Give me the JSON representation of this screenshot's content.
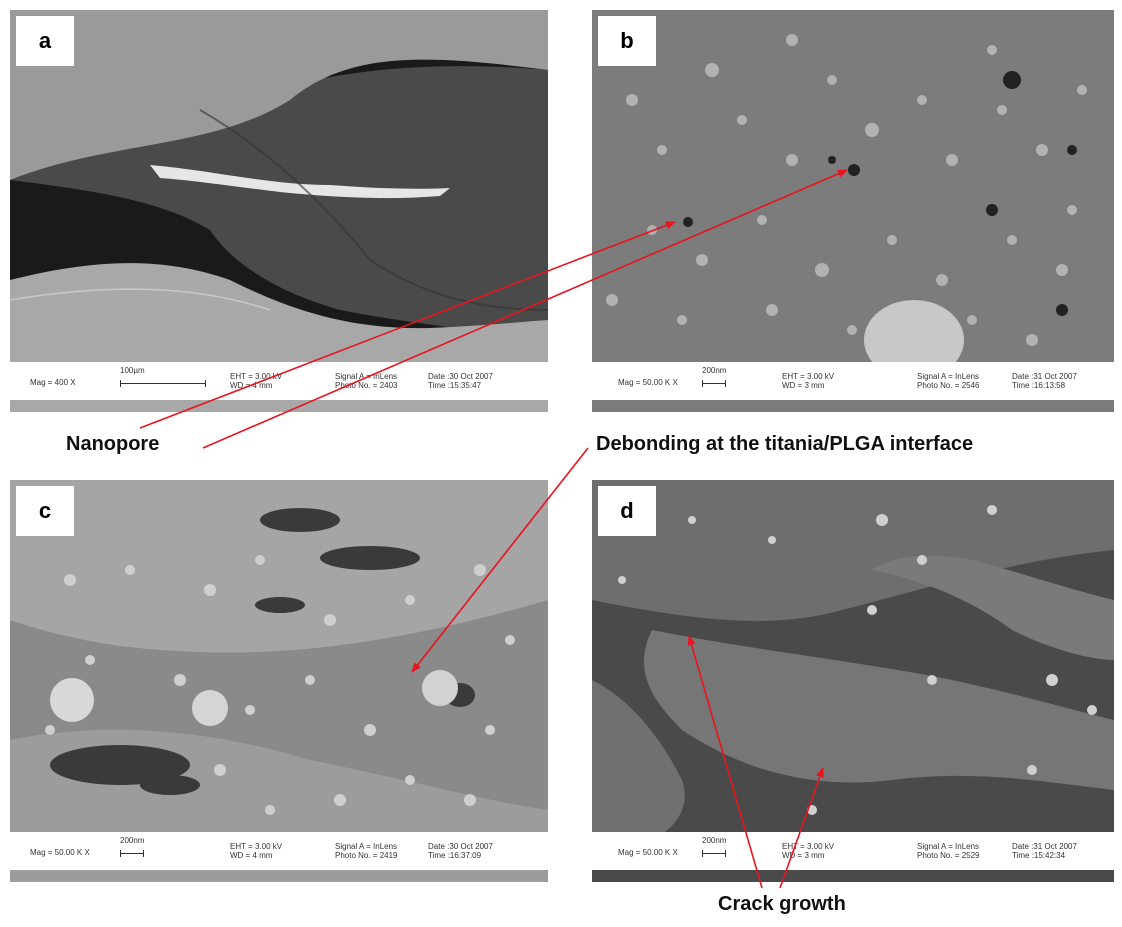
{
  "panels": {
    "a": {
      "label": "a",
      "mag": "Mag =   400 X",
      "scale": "100µm",
      "eht": "EHT =  3.00 kV",
      "wd": "WD =    4 mm",
      "signal": "Signal A = InLens",
      "photo": "Photo No. = 2403",
      "date": "Date :30 Oct 2007",
      "time": "Time :15:35:47"
    },
    "b": {
      "label": "b",
      "mag": "Mag =  50.00 K X",
      "scale": "200nm",
      "eht": "EHT =  3.00 kV",
      "wd": "WD =    3 mm",
      "signal": "Signal A = InLens",
      "photo": "Photo No. = 2546",
      "date": "Date :31 Oct 2007",
      "time": "Time :16:13:58"
    },
    "c": {
      "label": "c",
      "mag": "Mag =  50.00 K X",
      "scale": "200nm",
      "eht": "EHT =  3.00 kV",
      "wd": "WD =    4 mm",
      "signal": "Signal A = InLens",
      "photo": "Photo No. = 2419",
      "date": "Date :30 Oct 2007",
      "time": "Time :16:37:09"
    },
    "d": {
      "label": "d",
      "mag": "Mag =  50.00 K X",
      "scale": "200nm",
      "eht": "EHT =  3.00 kV",
      "wd": "WD =    3 mm",
      "signal": "Signal A = InLens",
      "photo": "Photo No. = 2529",
      "date": "Date :31 Oct 2007",
      "time": "Time :15:42:34"
    }
  },
  "captions": {
    "nanopore": "Nanopore",
    "debonding": "Debonding at the titania/PLGA interface",
    "crack": "Crack growth"
  },
  "colors": {
    "arrow": "#e8141e"
  }
}
